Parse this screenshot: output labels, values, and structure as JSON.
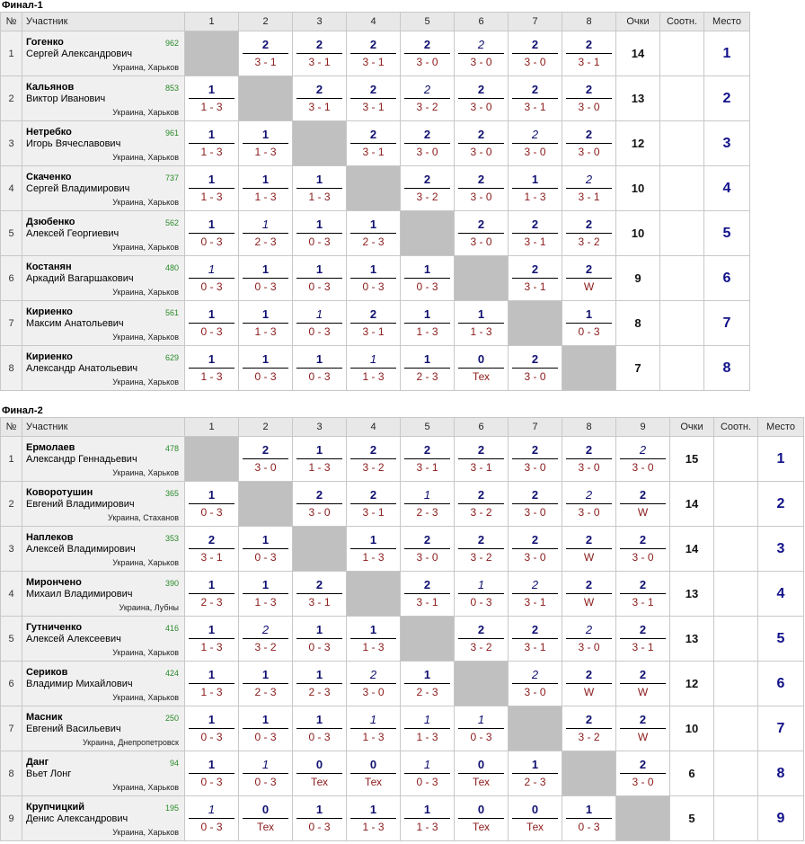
{
  "tables": [
    {
      "title": "Финал-1",
      "headers": {
        "num": "№",
        "participant": "Участник",
        "cols": [
          "1",
          "2",
          "3",
          "4",
          "5",
          "6",
          "7",
          "8"
        ],
        "points": "Очки",
        "ratio": "Соотн.",
        "place": "Место"
      },
      "rows": [
        {
          "num": "1",
          "surname": "Гогенко",
          "name": "Сергей Александрович",
          "rating": "962",
          "city": "Украина, Харьков",
          "cells": [
            null,
            {
              "p": "2",
              "s": "3 - 1"
            },
            {
              "p": "2",
              "s": "3 - 1"
            },
            {
              "p": "2",
              "s": "3 - 1"
            },
            {
              "p": "2",
              "s": "3 - 0"
            },
            {
              "p": "2",
              "s": "3 - 0",
              "i": true
            },
            {
              "p": "2",
              "s": "3 - 0"
            },
            {
              "p": "2",
              "s": "3 - 1"
            }
          ],
          "points": "14",
          "ratio": "",
          "place": "1"
        },
        {
          "num": "2",
          "surname": "Кальянов",
          "name": "Виктор Иванович",
          "rating": "853",
          "city": "Украина, Харьков",
          "cells": [
            {
              "p": "1",
              "s": "1 - 3"
            },
            null,
            {
              "p": "2",
              "s": "3 - 1"
            },
            {
              "p": "2",
              "s": "3 - 1"
            },
            {
              "p": "2",
              "s": "3 - 2",
              "i": true
            },
            {
              "p": "2",
              "s": "3 - 0"
            },
            {
              "p": "2",
              "s": "3 - 1"
            },
            {
              "p": "2",
              "s": "3 - 0"
            }
          ],
          "points": "13",
          "ratio": "",
          "place": "2"
        },
        {
          "num": "3",
          "surname": "Нетребко",
          "name": "Игорь Вячеславович",
          "rating": "961",
          "city": "Украина, Харьков",
          "cells": [
            {
              "p": "1",
              "s": "1 - 3"
            },
            {
              "p": "1",
              "s": "1 - 3"
            },
            null,
            {
              "p": "2",
              "s": "3 - 1"
            },
            {
              "p": "2",
              "s": "3 - 0"
            },
            {
              "p": "2",
              "s": "3 - 0"
            },
            {
              "p": "2",
              "s": "3 - 0",
              "i": true
            },
            {
              "p": "2",
              "s": "3 - 0"
            }
          ],
          "points": "12",
          "ratio": "",
          "place": "3"
        },
        {
          "num": "4",
          "surname": "Скаченко",
          "name": "Сергей Владимирович",
          "rating": "737",
          "city": "Украина, Харьков",
          "cells": [
            {
              "p": "1",
              "s": "1 - 3"
            },
            {
              "p": "1",
              "s": "1 - 3"
            },
            {
              "p": "1",
              "s": "1 - 3"
            },
            null,
            {
              "p": "2",
              "s": "3 - 2"
            },
            {
              "p": "2",
              "s": "3 - 0"
            },
            {
              "p": "1",
              "s": "1 - 3"
            },
            {
              "p": "2",
              "s": "3 - 1",
              "i": true
            }
          ],
          "points": "10",
          "ratio": "",
          "place": "4"
        },
        {
          "num": "5",
          "surname": "Дзюбенко",
          "name": "Алексей Георгиевич",
          "rating": "562",
          "city": "Украина, Харьков",
          "cells": [
            {
              "p": "1",
              "s": "0 - 3"
            },
            {
              "p": "1",
              "s": "2 - 3",
              "i": true
            },
            {
              "p": "1",
              "s": "0 - 3"
            },
            {
              "p": "1",
              "s": "2 - 3"
            },
            null,
            {
              "p": "2",
              "s": "3 - 0"
            },
            {
              "p": "2",
              "s": "3 - 1"
            },
            {
              "p": "2",
              "s": "3 - 2"
            }
          ],
          "points": "10",
          "ratio": "",
          "place": "5"
        },
        {
          "num": "6",
          "surname": "Костанян",
          "name": "Аркадий Вагаршакович",
          "rating": "480",
          "city": "Украина, Харьков",
          "cells": [
            {
              "p": "1",
              "s": "0 - 3",
              "i": true
            },
            {
              "p": "1",
              "s": "0 - 3"
            },
            {
              "p": "1",
              "s": "0 - 3"
            },
            {
              "p": "1",
              "s": "0 - 3"
            },
            {
              "p": "1",
              "s": "0 - 3"
            },
            null,
            {
              "p": "2",
              "s": "3 - 1"
            },
            {
              "p": "2",
              "s": "W"
            }
          ],
          "points": "9",
          "ratio": "",
          "place": "6"
        },
        {
          "num": "7",
          "surname": "Кириенко",
          "name": "Максим Анатольевич",
          "rating": "561",
          "city": "Украина, Харьков",
          "cells": [
            {
              "p": "1",
              "s": "0 - 3"
            },
            {
              "p": "1",
              "s": "1 - 3"
            },
            {
              "p": "1",
              "s": "0 - 3",
              "i": true
            },
            {
              "p": "2",
              "s": "3 - 1"
            },
            {
              "p": "1",
              "s": "1 - 3"
            },
            {
              "p": "1",
              "s": "1 - 3"
            },
            null,
            {
              "p": "1",
              "s": "0 - 3"
            }
          ],
          "points": "8",
          "ratio": "",
          "place": "7"
        },
        {
          "num": "8",
          "surname": "Кириенко",
          "name": "Александр Анатольевич",
          "rating": "629",
          "city": "Украина, Харьков",
          "cells": [
            {
              "p": "1",
              "s": "1 - 3"
            },
            {
              "p": "1",
              "s": "0 - 3"
            },
            {
              "p": "1",
              "s": "0 - 3"
            },
            {
              "p": "1",
              "s": "1 - 3",
              "i": true
            },
            {
              "p": "1",
              "s": "2 - 3"
            },
            {
              "p": "0",
              "s": "Тех"
            },
            {
              "p": "2",
              "s": "3 - 0"
            },
            null
          ],
          "points": "7",
          "ratio": "",
          "place": "8"
        }
      ]
    },
    {
      "title": "Финал-2",
      "headers": {
        "num": "№",
        "participant": "Участник",
        "cols": [
          "1",
          "2",
          "3",
          "4",
          "5",
          "6",
          "7",
          "8",
          "9"
        ],
        "points": "Очки",
        "ratio": "Соотн.",
        "place": "Место"
      },
      "rows": [
        {
          "num": "1",
          "surname": "Ермолаев",
          "name": "Александр Геннадьевич",
          "rating": "478",
          "city": "Украина, Харьков",
          "cells": [
            null,
            {
              "p": "2",
              "s": "3 - 0"
            },
            {
              "p": "1",
              "s": "1 - 3"
            },
            {
              "p": "2",
              "s": "3 - 2"
            },
            {
              "p": "2",
              "s": "3 - 1"
            },
            {
              "p": "2",
              "s": "3 - 1"
            },
            {
              "p": "2",
              "s": "3 - 0"
            },
            {
              "p": "2",
              "s": "3 - 0"
            },
            {
              "p": "2",
              "s": "3 - 0",
              "i": true
            }
          ],
          "points": "15",
          "ratio": "",
          "place": "1"
        },
        {
          "num": "2",
          "surname": "Коворотушин",
          "name": "Евгений Владимирович",
          "rating": "365",
          "city": "Украина, Стаханов",
          "cells": [
            {
              "p": "1",
              "s": "0 - 3"
            },
            null,
            {
              "p": "2",
              "s": "3 - 0"
            },
            {
              "p": "2",
              "s": "3 - 1"
            },
            {
              "p": "1",
              "s": "2 - 3",
              "i": true
            },
            {
              "p": "2",
              "s": "3 - 2"
            },
            {
              "p": "2",
              "s": "3 - 0"
            },
            {
              "p": "2",
              "s": "3 - 0",
              "i": true
            },
            {
              "p": "2",
              "s": "W"
            }
          ],
          "points": "14",
          "ratio": "",
          "place": "2"
        },
        {
          "num": "3",
          "surname": "Наплеков",
          "name": "Алексей Владимирович",
          "rating": "353",
          "city": "Украина, Харьков",
          "cells": [
            {
              "p": "2",
              "s": "3 - 1"
            },
            {
              "p": "1",
              "s": "0 - 3"
            },
            null,
            {
              "p": "1",
              "s": "1 - 3"
            },
            {
              "p": "2",
              "s": "3 - 0"
            },
            {
              "p": "2",
              "s": "3 - 2"
            },
            {
              "p": "2",
              "s": "3 - 0"
            },
            {
              "p": "2",
              "s": "W"
            },
            {
              "p": "2",
              "s": "3 - 0"
            }
          ],
          "points": "14",
          "ratio": "",
          "place": "3"
        },
        {
          "num": "4",
          "surname": "Мирончено",
          "name": "Михаил Владимирович",
          "rating": "390",
          "city": "Украина, Лубны",
          "cells": [
            {
              "p": "1",
              "s": "2 - 3"
            },
            {
              "p": "1",
              "s": "1 - 3"
            },
            {
              "p": "2",
              "s": "3 - 1"
            },
            null,
            {
              "p": "2",
              "s": "3 - 1"
            },
            {
              "p": "1",
              "s": "0 - 3",
              "i": true
            },
            {
              "p": "2",
              "s": "3 - 1",
              "i": true
            },
            {
              "p": "2",
              "s": "W"
            },
            {
              "p": "2",
              "s": "3 - 1"
            }
          ],
          "points": "13",
          "ratio": "",
          "place": "4"
        },
        {
          "num": "5",
          "surname": "Гутниченко",
          "name": "Алексей Алексеевич",
          "rating": "416",
          "city": "Украина, Харьков",
          "cells": [
            {
              "p": "1",
              "s": "1 - 3"
            },
            {
              "p": "2",
              "s": "3 - 2",
              "i": true
            },
            {
              "p": "1",
              "s": "0 - 3"
            },
            {
              "p": "1",
              "s": "1 - 3"
            },
            null,
            {
              "p": "2",
              "s": "3 - 2"
            },
            {
              "p": "2",
              "s": "3 - 1"
            },
            {
              "p": "2",
              "s": "3 - 0",
              "i": true
            },
            {
              "p": "2",
              "s": "3 - 1"
            }
          ],
          "points": "13",
          "ratio": "",
          "place": "5"
        },
        {
          "num": "6",
          "surname": "Сериков",
          "name": "Владимир Михайлович",
          "rating": "424",
          "city": "Украина, Харьков",
          "cells": [
            {
              "p": "1",
              "s": "1 - 3"
            },
            {
              "p": "1",
              "s": "2 - 3"
            },
            {
              "p": "1",
              "s": "2 - 3"
            },
            {
              "p": "2",
              "s": "3 - 0",
              "i": true
            },
            {
              "p": "1",
              "s": "2 - 3"
            },
            null,
            {
              "p": "2",
              "s": "3 - 0",
              "i": true
            },
            {
              "p": "2",
              "s": "W"
            },
            {
              "p": "2",
              "s": "W"
            }
          ],
          "points": "12",
          "ratio": "",
          "place": "6"
        },
        {
          "num": "7",
          "surname": "Масник",
          "name": "Евгений Васильевич",
          "rating": "250",
          "city": "Украина, Днепропетровск",
          "cells": [
            {
              "p": "1",
              "s": "0 - 3"
            },
            {
              "p": "1",
              "s": "0 - 3"
            },
            {
              "p": "1",
              "s": "0 - 3"
            },
            {
              "p": "1",
              "s": "1 - 3",
              "i": true
            },
            {
              "p": "1",
              "s": "1 - 3",
              "i": true
            },
            {
              "p": "1",
              "s": "0 - 3",
              "i": true
            },
            null,
            {
              "p": "2",
              "s": "3 - 2"
            },
            {
              "p": "2",
              "s": "W"
            }
          ],
          "points": "10",
          "ratio": "",
          "place": "7"
        },
        {
          "num": "8",
          "surname": "Данг",
          "name": "Вьет Лонг",
          "rating": "94",
          "city": "Украина, Харьков",
          "cells": [
            {
              "p": "1",
              "s": "0 - 3"
            },
            {
              "p": "1",
              "s": "0 - 3",
              "i": true
            },
            {
              "p": "0",
              "s": "Тех"
            },
            {
              "p": "0",
              "s": "Тех"
            },
            {
              "p": "1",
              "s": "0 - 3",
              "i": true
            },
            {
              "p": "0",
              "s": "Тех"
            },
            {
              "p": "1",
              "s": "2 - 3"
            },
            null,
            {
              "p": "2",
              "s": "3 - 0"
            }
          ],
          "points": "6",
          "ratio": "",
          "place": "8"
        },
        {
          "num": "9",
          "surname": "Крупчицкий",
          "name": "Денис Александрович",
          "rating": "195",
          "city": "Украина, Харьков",
          "cells": [
            {
              "p": "1",
              "s": "0 - 3",
              "i": true
            },
            {
              "p": "0",
              "s": "Тех"
            },
            {
              "p": "1",
              "s": "0 - 3"
            },
            {
              "p": "1",
              "s": "1 - 3"
            },
            {
              "p": "1",
              "s": "1 - 3"
            },
            {
              "p": "0",
              "s": "Тех"
            },
            {
              "p": "0",
              "s": "Тех"
            },
            {
              "p": "1",
              "s": "0 - 3"
            },
            null
          ],
          "points": "5",
          "ratio": "",
          "place": "9"
        }
      ]
    }
  ]
}
